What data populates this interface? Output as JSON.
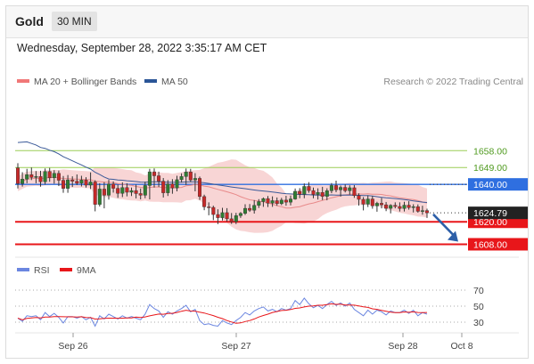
{
  "header": {
    "title": "Gold",
    "timeframe": "30 MIN"
  },
  "datetime": "Wednesday, September 28, 2022 3:35:17 AM CET",
  "legend": {
    "ma20_bb": "MA 20 + Bollinger Bands",
    "ma50": "MA 50",
    "credit": "Research © 2022 Trading Central"
  },
  "rsi_legend": {
    "rsi": "RSI",
    "ma9": "9MA"
  },
  "colors": {
    "resistance": "#9acd55",
    "pivot": "#2f6fe0",
    "support": "#e8161a",
    "bollinger": "#f6c7c7",
    "ma20": "#e88a8a",
    "ma50": "#3b5a99",
    "candle_up": "#2e7d32",
    "candle_down": "#c62828",
    "rsi": "#6b86e0",
    "ma9": "#e8161a"
  },
  "chart_data": {
    "type": "candlestick",
    "instrument": "Gold",
    "interval": "30 MIN",
    "x_ticks": [
      "Sep 26",
      "Sep 27",
      "Sep 28",
      "Oct 8"
    ],
    "ylim": [
      1603,
      1690
    ],
    "levels": [
      {
        "label": "1658.00",
        "value": 1658.0,
        "kind": "resistance"
      },
      {
        "label": "1649.00",
        "value": 1649.0,
        "kind": "resistance"
      },
      {
        "label": "1640.00",
        "value": 1640.0,
        "kind": "pivot"
      },
      {
        "label": "1620.00",
        "value": 1620.0,
        "kind": "support"
      },
      {
        "label": "1608.00",
        "value": 1608.0,
        "kind": "support"
      }
    ],
    "last_price": {
      "label": "1624.79",
      "value": 1624.79
    },
    "forecast_target": 1608,
    "candles": [
      [
        1648.8,
        1651.3,
        1637.8,
        1640.4
      ],
      [
        1640.4,
        1646.5,
        1638.8,
        1642.8
      ],
      [
        1642.8,
        1648.3,
        1640.6,
        1645.2
      ],
      [
        1645.2,
        1649.0,
        1642.3,
        1643.7
      ],
      [
        1643.7,
        1647.1,
        1640.6,
        1644.2
      ],
      [
        1644.2,
        1647.3,
        1638.8,
        1641.4
      ],
      [
        1641.4,
        1648.5,
        1639.9,
        1646.9
      ],
      [
        1646.9,
        1648.8,
        1641.4,
        1643.5
      ],
      [
        1643.5,
        1647.6,
        1640.4,
        1645.9
      ],
      [
        1645.9,
        1647.4,
        1639.1,
        1642.2
      ],
      [
        1642.2,
        1644.5,
        1635.5,
        1637.8
      ],
      [
        1637.8,
        1645.0,
        1635.5,
        1642.4
      ],
      [
        1642.4,
        1644.3,
        1638.6,
        1641.7
      ],
      [
        1641.7,
        1645.3,
        1639.6,
        1640.6
      ],
      [
        1640.6,
        1644.6,
        1638.9,
        1642.3
      ],
      [
        1642.3,
        1643.8,
        1638.3,
        1639.6
      ],
      [
        1639.6,
        1646.4,
        1637.5,
        1641.3
      ],
      [
        1641.3,
        1642.2,
        1625.6,
        1629.3
      ],
      [
        1629.3,
        1640.6,
        1628.2,
        1637.5
      ],
      [
        1637.5,
        1641.2,
        1627.2,
        1634.2
      ],
      [
        1634.2,
        1642.4,
        1631.9,
        1640.2
      ],
      [
        1640.2,
        1641.6,
        1635.6,
        1637.9
      ],
      [
        1637.9,
        1639.9,
        1632.8,
        1635.2
      ],
      [
        1635.2,
        1641.1,
        1633.2,
        1638.3
      ],
      [
        1638.3,
        1640.6,
        1633.6,
        1635.8
      ],
      [
        1635.8,
        1638.3,
        1633.8,
        1636.7
      ],
      [
        1636.7,
        1639.9,
        1632.5,
        1635.1
      ],
      [
        1635.1,
        1637.8,
        1632.0,
        1634.2
      ],
      [
        1634.2,
        1641.4,
        1632.6,
        1639.4
      ],
      [
        1639.4,
        1648.3,
        1632.0,
        1646.7
      ],
      [
        1646.7,
        1648.5,
        1638.3,
        1644.6
      ],
      [
        1644.6,
        1646.8,
        1638.6,
        1641.7
      ],
      [
        1641.7,
        1643.4,
        1633.0,
        1635.5
      ],
      [
        1635.5,
        1642.3,
        1633.8,
        1640.2
      ],
      [
        1640.2,
        1642.8,
        1635.0,
        1638.1
      ],
      [
        1638.1,
        1644.6,
        1636.3,
        1642.5
      ],
      [
        1642.5,
        1645.9,
        1641.0,
        1644.2
      ],
      [
        1644.2,
        1648.5,
        1639.7,
        1646.6
      ],
      [
        1646.6,
        1648.3,
        1641.3,
        1642.3
      ],
      [
        1642.3,
        1646.0,
        1636.3,
        1643.2
      ],
      [
        1643.2,
        1644.2,
        1631.7,
        1633.5
      ],
      [
        1633.5,
        1634.5,
        1626.2,
        1628.0
      ],
      [
        1628.0,
        1630.4,
        1623.5,
        1627.7
      ],
      [
        1627.7,
        1628.6,
        1620.9,
        1623.9
      ],
      [
        1623.9,
        1626.7,
        1618.8,
        1622.2
      ],
      [
        1622.2,
        1627.5,
        1620.7,
        1624.9
      ],
      [
        1624.9,
        1627.3,
        1620.1,
        1621.6
      ],
      [
        1621.6,
        1624.7,
        1618.9,
        1620.1
      ],
      [
        1620.1,
        1624.8,
        1618.8,
        1623.3
      ],
      [
        1623.3,
        1625.2,
        1622.1,
        1624.5
      ],
      [
        1624.5,
        1629.4,
        1623.7,
        1627.2
      ],
      [
        1627.2,
        1629.5,
        1625.3,
        1626.2
      ],
      [
        1626.2,
        1631.6,
        1624.4,
        1628.8
      ],
      [
        1628.8,
        1632.1,
        1627.4,
        1630.8
      ],
      [
        1630.8,
        1633.0,
        1628.0,
        1632.4
      ],
      [
        1632.4,
        1633.8,
        1627.9,
        1630.0
      ],
      [
        1630.0,
        1633.6,
        1628.0,
        1631.3
      ],
      [
        1631.3,
        1633.0,
        1628.6,
        1629.7
      ],
      [
        1629.7,
        1632.8,
        1628.9,
        1631.6
      ],
      [
        1631.6,
        1633.9,
        1628.6,
        1630.5
      ],
      [
        1630.5,
        1634.0,
        1628.8,
        1632.2
      ],
      [
        1632.2,
        1637.8,
        1631.8,
        1636.3
      ],
      [
        1636.3,
        1638.0,
        1632.6,
        1634.7
      ],
      [
        1634.7,
        1640.5,
        1632.6,
        1638.9
      ],
      [
        1638.9,
        1641.2,
        1635.5,
        1636.7
      ],
      [
        1636.7,
        1638.3,
        1632.6,
        1634.6
      ],
      [
        1634.6,
        1637.9,
        1631.9,
        1635.7
      ],
      [
        1635.7,
        1638.7,
        1631.6,
        1633.6
      ],
      [
        1633.6,
        1637.9,
        1631.5,
        1636.6
      ],
      [
        1636.6,
        1640.7,
        1635.3,
        1639.4
      ],
      [
        1639.4,
        1642.0,
        1635.8,
        1637.1
      ],
      [
        1637.1,
        1639.4,
        1633.5,
        1638.4
      ],
      [
        1638.4,
        1640.0,
        1635.7,
        1636.6
      ],
      [
        1636.6,
        1639.5,
        1634.5,
        1638.2
      ],
      [
        1638.2,
        1639.6,
        1632.8,
        1634.0
      ],
      [
        1634.0,
        1635.2,
        1628.7,
        1632.0
      ],
      [
        1632.0,
        1633.2,
        1626.1,
        1629.4
      ],
      [
        1629.4,
        1634.1,
        1627.9,
        1632.2
      ],
      [
        1632.2,
        1633.8,
        1627.0,
        1628.5
      ],
      [
        1628.5,
        1630.7,
        1625.4,
        1629.9
      ],
      [
        1629.9,
        1632.8,
        1627.2,
        1629.1
      ],
      [
        1629.1,
        1630.6,
        1625.7,
        1627.2
      ],
      [
        1627.2,
        1629.4,
        1624.5,
        1628.8
      ],
      [
        1628.8,
        1630.4,
        1627.2,
        1628.2
      ],
      [
        1628.2,
        1630.4,
        1625.5,
        1627.1
      ],
      [
        1627.1,
        1630.7,
        1625.5,
        1628.9
      ],
      [
        1628.9,
        1631.0,
        1626.5,
        1627.6
      ],
      [
        1627.6,
        1629.4,
        1625.0,
        1628.1
      ],
      [
        1628.1,
        1629.3,
        1624.9,
        1625.6
      ],
      [
        1625.6,
        1628.6,
        1623.8,
        1626.0
      ],
      [
        1626.0,
        1627.0,
        1622.1,
        1624.8
      ]
    ],
    "series": [
      {
        "name": "MA 20 + Bollinger Bands",
        "kind": "ma20"
      },
      {
        "name": "MA 50",
        "kind": "ma50"
      }
    ],
    "rsi": {
      "levels": [
        {
          "label": "70",
          "value": 70
        },
        {
          "label": "50",
          "value": 50
        },
        {
          "label": "30",
          "value": 30
        }
      ],
      "ylim": [
        20,
        80
      ],
      "values": [
        35,
        31,
        38,
        37,
        38,
        33,
        42,
        37,
        41,
        36,
        29,
        37,
        37,
        35,
        37,
        33,
        36,
        25,
        38,
        34,
        40,
        37,
        34,
        38,
        35,
        37,
        35,
        33,
        40,
        52,
        47,
        44,
        36,
        43,
        40,
        44,
        47,
        51,
        43,
        46,
        32,
        27,
        28,
        26,
        25,
        32,
        29,
        27,
        32,
        36,
        42,
        39,
        44,
        47,
        49,
        44,
        46,
        43,
        47,
        45,
        47,
        57,
        52,
        60,
        53,
        48,
        51,
        47,
        52,
        56,
        51,
        54,
        50,
        54,
        46,
        42,
        38,
        45,
        40,
        45,
        43,
        39,
        44,
        42,
        42,
        45,
        41,
        45,
        38,
        42,
        40
      ]
    }
  }
}
